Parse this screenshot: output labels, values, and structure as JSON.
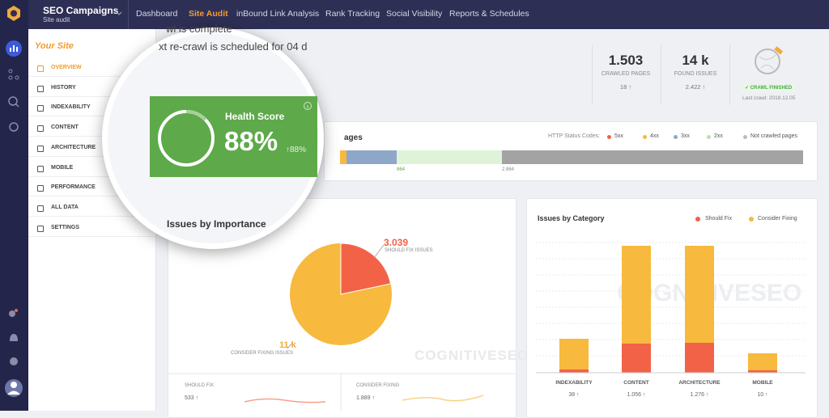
{
  "top_nav": {
    "campaign": "SEO Campaigns",
    "subtitle": "Site audit",
    "items": [
      "Dashboard",
      "Site Audit",
      "inBound Link Analysis",
      "Rank Tracking",
      "Social Visibility",
      "Reports & Schedules"
    ]
  },
  "sidebar": {
    "title": "Your Site",
    "items": [
      "OVERVIEW",
      "HISTORY",
      "INDEXABILITY",
      "CONTENT",
      "ARCHITECTURE",
      "MOBILE",
      "PERFORMANCE",
      "ALL DATA",
      "SETTINGS"
    ]
  },
  "status": {
    "line1": "wl is complete",
    "line2": "xt re-crawl is scheduled for 04 d"
  },
  "stats": [
    {
      "value": "1.503",
      "label": "CRAWLED PAGES",
      "change": "18 ↑"
    },
    {
      "value": "14 k",
      "label": "FOUND ISSUES",
      "change": "2.422 ↑"
    }
  ],
  "crawl": {
    "badge": "✓ CRAWL FINISHED",
    "last": "Last crawl: 2018.12.05"
  },
  "health": {
    "title": "Health Score",
    "value": "88%",
    "change": "↑88%"
  },
  "pages": {
    "title": "ages",
    "legend_title": "HTTP Status Codes:",
    "legend": [
      "5xx",
      "4xx",
      "3xx",
      "2xx",
      "Not crawled pages"
    ],
    "labels": [
      "864",
      "2.864"
    ]
  },
  "importance": {
    "title": "Issues by Importance",
    "should_fix": "3.039",
    "should_fix_label": "SHOULD FIX ISSUES",
    "consider": "11 k",
    "consider_label": "CONSIDER FIXING ISSUES",
    "watermark": "COGNITIVESEO",
    "bottom": [
      {
        "label": "SHOULD FIX",
        "value": "533 ↑"
      },
      {
        "label": "CONSIDER FIXING",
        "value": "1.889 ↑"
      }
    ]
  },
  "category": {
    "title": "Issues by Category",
    "legend": [
      "Should Fix",
      "Consider Fixing"
    ],
    "watermark": "COGNITIVESEO",
    "items": [
      {
        "label": "INDEXABILITY",
        "value": "38 ↑"
      },
      {
        "label": "CONTENT",
        "value": "1.056 ↑"
      },
      {
        "label": "ARCHITECTURE",
        "value": "1.276 ↑"
      },
      {
        "label": "MOBILE",
        "value": "10 ↑"
      }
    ]
  }
}
